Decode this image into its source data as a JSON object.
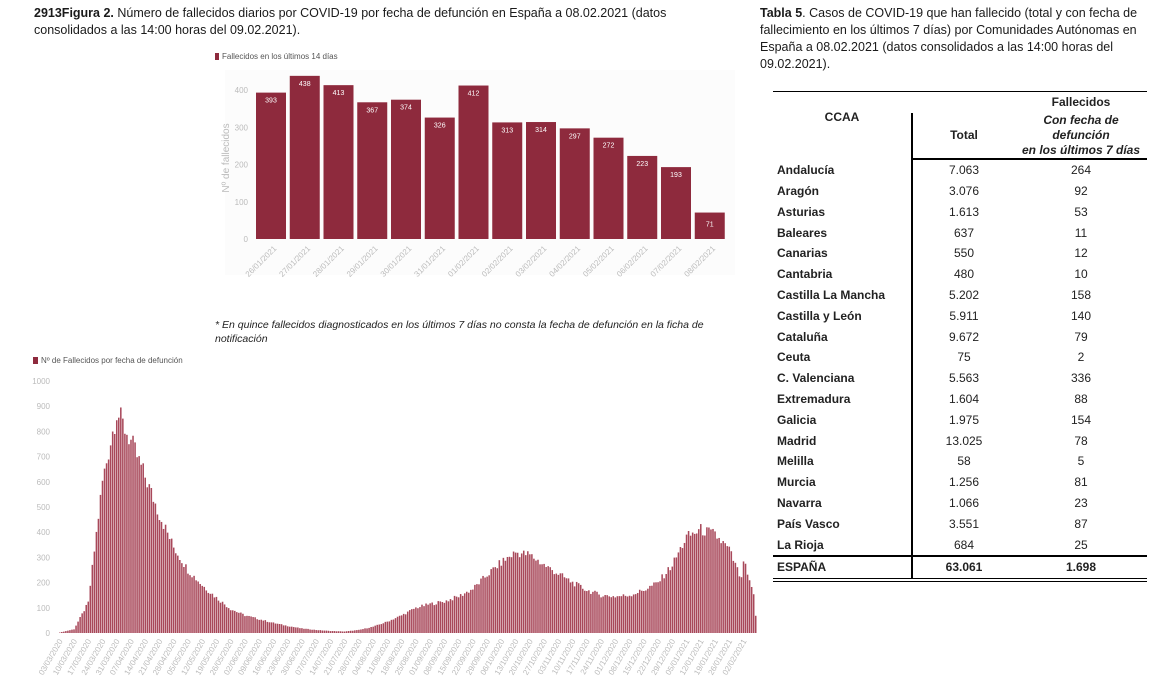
{
  "figure": {
    "caption_bold": "2913Figura 2.",
    "caption_text": " Número de fallecidos diarios por COVID-19 por fecha de defunción en España a 08.02.2021 (datos consolidados a las 14:00 horas del 09.02.2021).",
    "note": "* En quince fallecidos diagnosticados en los últimos 7 días no consta la fecha de defunción en la ficha de notificación"
  },
  "table": {
    "caption_bold": "Tabla 5",
    "caption_text": ". Casos de COVID-19 que han fallecido (total y con fecha de fallecimiento en los últimos 7 días) por Comunidades Autónomas en España a 08.02.2021 (datos consolidados a las 14:00 horas del 09.02.2021).",
    "group_header": "Fallecidos",
    "col_ccaa": "CCAA",
    "col_total": "Total",
    "col_recent_line1": "Con fecha de defunción",
    "col_recent_line2": "en los últimos 7 días",
    "rows": [
      {
        "ccaa": "Andalucía",
        "total": "7.063",
        "recent": "264"
      },
      {
        "ccaa": "Aragón",
        "total": "3.076",
        "recent": "92"
      },
      {
        "ccaa": "Asturias",
        "total": "1.613",
        "recent": "53"
      },
      {
        "ccaa": "Baleares",
        "total": "637",
        "recent": "11"
      },
      {
        "ccaa": "Canarias",
        "total": "550",
        "recent": "12"
      },
      {
        "ccaa": "Cantabria",
        "total": "480",
        "recent": "10"
      },
      {
        "ccaa": "Castilla La Mancha",
        "total": "5.202",
        "recent": "158"
      },
      {
        "ccaa": "Castilla y León",
        "total": "5.911",
        "recent": "140"
      },
      {
        "ccaa": "Cataluña",
        "total": "9.672",
        "recent": "79"
      },
      {
        "ccaa": "Ceuta",
        "total": "75",
        "recent": "2"
      },
      {
        "ccaa": "C. Valenciana",
        "total": "5.563",
        "recent": "336"
      },
      {
        "ccaa": "Extremadura",
        "total": "1.604",
        "recent": "88"
      },
      {
        "ccaa": "Galicia",
        "total": "1.975",
        "recent": "154"
      },
      {
        "ccaa": "Madrid",
        "total": "13.025",
        "recent": "78"
      },
      {
        "ccaa": "Melilla",
        "total": "58",
        "recent": "5"
      },
      {
        "ccaa": "Murcia",
        "total": "1.256",
        "recent": "81"
      },
      {
        "ccaa": "Navarra",
        "total": "1.066",
        "recent": "23"
      },
      {
        "ccaa": "País Vasco",
        "total": "3.551",
        "recent": "87"
      },
      {
        "ccaa": "La Rioja",
        "total": "684",
        "recent": "25"
      }
    ],
    "total_row": {
      "ccaa": "ESPAÑA",
      "total": "63.061",
      "recent": "1.698"
    }
  },
  "chart_data": [
    {
      "type": "bar",
      "title": "",
      "legend": "Fallecidos en los últimos 14 días",
      "legend_position": "top-left",
      "xlabel": "",
      "ylabel": "Nº de fallecidos",
      "ylim": [
        0,
        440
      ],
      "yticks": [
        0,
        100,
        200,
        300,
        400
      ],
      "grid": false,
      "color": "#8e2a3d",
      "categories": [
        "26/01/2021",
        "27/01/2021",
        "28/01/2021",
        "29/01/2021",
        "30/01/2021",
        "31/01/2021",
        "01/02/2021",
        "02/02/2021",
        "03/02/2021",
        "04/02/2021",
        "05/02/2021",
        "06/02/2021",
        "07/02/2021",
        "08/02/2021"
      ],
      "values": [
        393,
        438,
        413,
        367,
        374,
        326,
        412,
        313,
        314,
        297,
        272,
        223,
        193,
        71
      ],
      "data_labels": true
    },
    {
      "type": "bar",
      "title": "",
      "legend": "Nº de Fallecidos por fecha de defunción",
      "legend_position": "top-left",
      "xlabel": "",
      "ylabel": "",
      "ylim": [
        0,
        1000
      ],
      "yticks": [
        0,
        100,
        200,
        300,
        400,
        500,
        600,
        700,
        800,
        900,
        1000
      ],
      "grid": false,
      "color": "#a8485a",
      "x_start": "03/03/2020",
      "x_end": "08/02/2021",
      "xtick_labels": [
        "03/03/2020",
        "10/03/2020",
        "17/03/2020",
        "24/03/2020",
        "31/03/2020",
        "07/04/2020",
        "14/04/2020",
        "21/04/2020",
        "28/04/2020",
        "05/05/2020",
        "12/05/2020",
        "19/05/2020",
        "26/05/2020",
        "02/06/2020",
        "09/06/2020",
        "16/06/2020",
        "23/06/2020",
        "30/06/2020",
        "07/07/2020",
        "14/07/2020",
        "21/07/2020",
        "28/07/2020",
        "04/08/2020",
        "11/08/2020",
        "18/08/2020",
        "25/08/2020",
        "01/09/2020",
        "08/09/2020",
        "15/09/2020",
        "22/09/2020",
        "29/09/2020",
        "06/10/2020",
        "13/10/2020",
        "20/10/2020",
        "27/10/2020",
        "03/11/2020",
        "10/11/2020",
        "17/11/2020",
        "24/11/2020",
        "01/12/2020",
        "08/12/2020",
        "15/12/2020",
        "22/12/2020",
        "29/12/2020",
        "05/01/2021",
        "12/01/2021",
        "19/01/2021",
        "26/01/2021",
        "02/02/2021"
      ],
      "weekly_approx_values": [
        2,
        15,
        120,
        600,
        880,
        760,
        620,
        470,
        340,
        250,
        190,
        140,
        95,
        70,
        55,
        40,
        28,
        18,
        12,
        8,
        6,
        12,
        25,
        45,
        70,
        100,
        115,
        125,
        145,
        175,
        230,
        280,
        320,
        310,
        270,
        235,
        200,
        170,
        150,
        145,
        150,
        170,
        200,
        270,
        380,
        410,
        390,
        330,
        190
      ],
      "note": "daily values approximated from the figure; weekly anchors interpolated to daily"
    }
  ]
}
